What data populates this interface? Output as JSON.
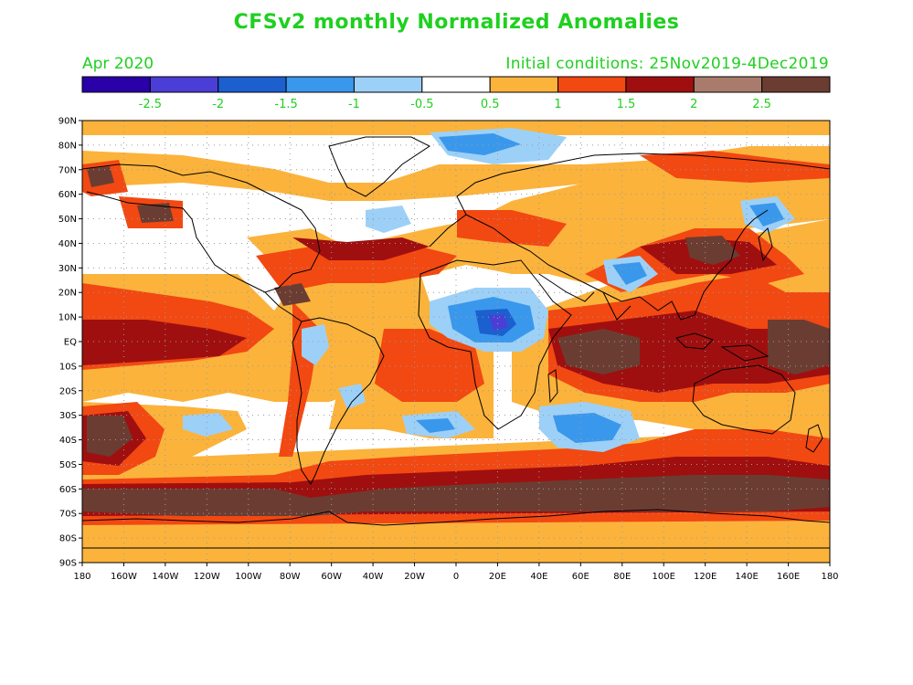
{
  "title": "CFSv2 monthly Normalized Anomalies",
  "month_label": "Apr 2020",
  "init_label": "Initial conditions: 25Nov2019-4Dec2019",
  "text_color": "#1fd01f",
  "colorbar": {
    "colors": [
      "#2a00a8",
      "#4b3ed6",
      "#1c5fcf",
      "#3a98ec",
      "#9dd0f7",
      "#ffffff",
      "#fbb33c",
      "#f24812",
      "#a00f0f",
      "#a97b6c",
      "#6b3d32"
    ],
    "labels": [
      "-2.5",
      "-2",
      "-1.5",
      "-1",
      "-0.5",
      "0.5",
      "1",
      "1.5",
      "2",
      "2.5"
    ]
  },
  "map": {
    "lat_labels": [
      "90N",
      "80N",
      "70N",
      "60N",
      "50N",
      "40N",
      "30N",
      "20N",
      "10N",
      "EQ",
      "10S",
      "20S",
      "30S",
      "40S",
      "50S",
      "60S",
      "70S",
      "80S",
      "90S"
    ],
    "lon_labels": [
      "180",
      "160W",
      "140W",
      "120W",
      "100W",
      "80W",
      "60W",
      "40W",
      "20W",
      "0",
      "20E",
      "40E",
      "60E",
      "80E",
      "100E",
      "120E",
      "140E",
      "160E",
      "180"
    ]
  }
}
